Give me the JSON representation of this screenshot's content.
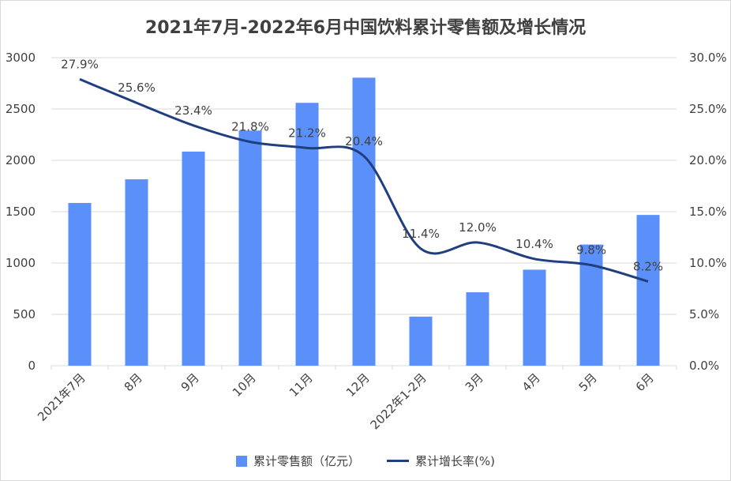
{
  "chart_data": {
    "type": "bar+line",
    "title": "2021年7月-2022年6月中国饮料累计零售额及增长情况",
    "categories": [
      "2021年7月",
      "8月",
      "9月",
      "10月",
      "11月",
      "12月",
      "2022年1-2月",
      "3月",
      "4月",
      "5月",
      "6月"
    ],
    "series": [
      {
        "name": "累计零售额（亿元）",
        "type": "bar",
        "axis": "left",
        "values": [
          1585,
          1815,
          2085,
          2290,
          2560,
          2805,
          478,
          715,
          935,
          1180,
          1468
        ]
      },
      {
        "name": "累计增长率(%)",
        "type": "line",
        "axis": "right",
        "values": [
          27.9,
          25.6,
          23.4,
          21.8,
          21.2,
          20.4,
          11.4,
          12.0,
          10.4,
          9.8,
          8.2
        ],
        "labels": [
          "27.9%",
          "25.6%",
          "23.4%",
          "21.8%",
          "21.2%",
          "20.4%",
          "11.4%",
          "12.0%",
          "10.4%",
          "9.8%",
          "8.2%"
        ]
      }
    ],
    "y_left": {
      "lim": [
        0,
        3000
      ],
      "ticks": [
        "0",
        "500",
        "1000",
        "1500",
        "2000",
        "2500",
        "3000"
      ]
    },
    "y_right": {
      "lim": [
        0,
        30
      ],
      "ticks": [
        "0.0%",
        "5.0%",
        "10.0%",
        "15.0%",
        "20.0%",
        "25.0%",
        "30.0%"
      ]
    },
    "grid": true,
    "legend_position": "bottom",
    "colors": {
      "bar": "#5b8ff9",
      "line": "#1f3f7f",
      "grid": "#d9d9d9",
      "text": "#404040"
    }
  }
}
